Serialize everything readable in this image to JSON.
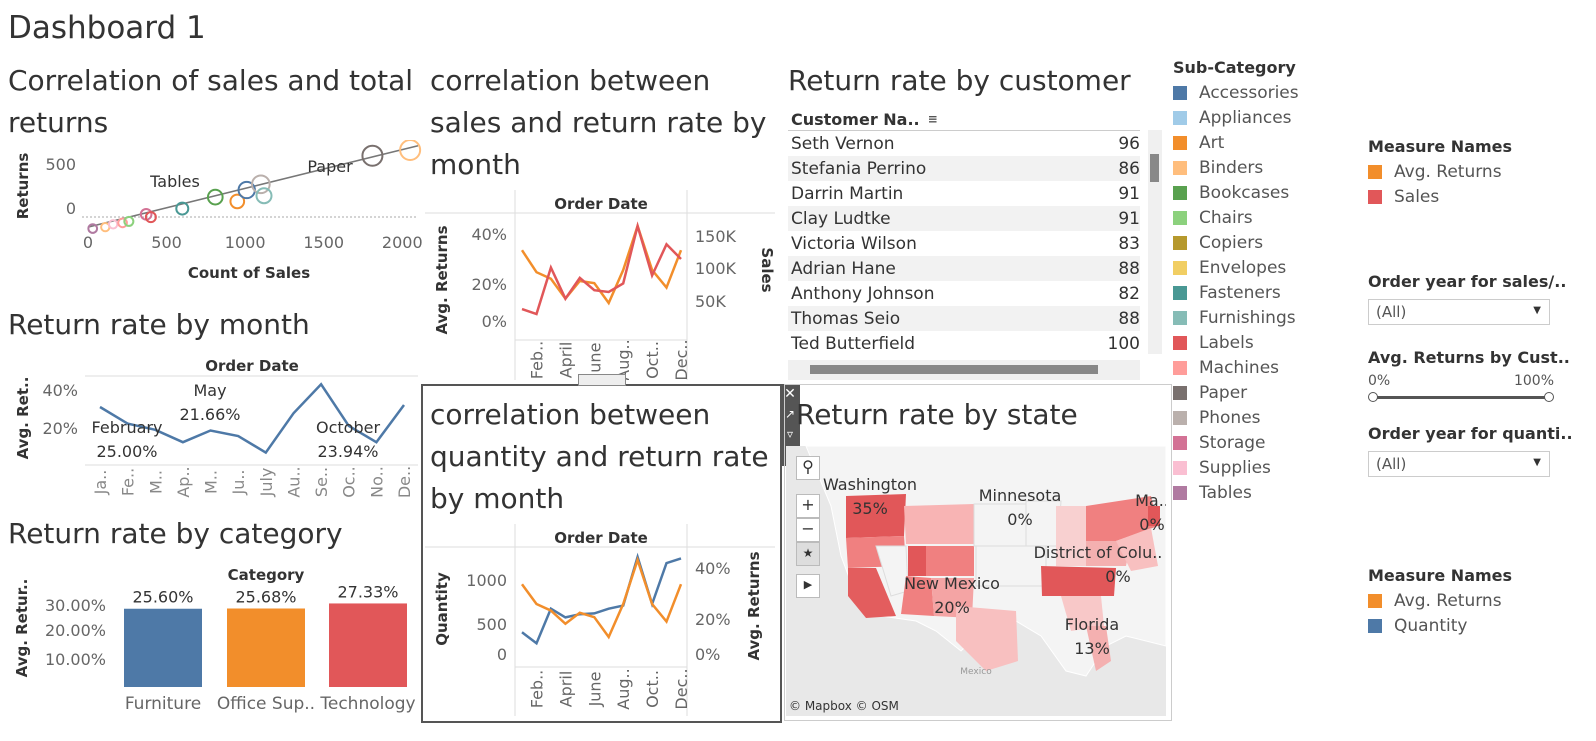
{
  "dashboard": {
    "title": "Dashboard 1"
  },
  "scatter": {
    "title": "Correlation of sales and total returns",
    "title_line1": "Correlation of sales and total",
    "title_line2": "returns",
    "ylabel": "Returns",
    "xlabel": "Count of Sales",
    "xticks": [
      "0",
      "500",
      "1000",
      "1500",
      "2000"
    ],
    "yticks": [
      "500",
      "0"
    ],
    "labels": [
      "Tables",
      "Paper"
    ]
  },
  "sales_month": {
    "title_lines": [
      "correlation between",
      "sales and return rate by",
      "month"
    ],
    "header": "Order Date",
    "ylabel_left": "Avg. Returns",
    "ylabel_right": "Sales",
    "yticks_left": [
      "40%",
      "20%",
      "0%"
    ],
    "yticks_right": [
      "150K",
      "100K",
      "50K"
    ],
    "xticks": [
      "Feb..",
      "April",
      "June",
      "Aug..",
      "Oct..",
      "Dec.."
    ]
  },
  "customer": {
    "title": "Return rate by customer",
    "header": "Customer Na..",
    "rows": [
      {
        "name": "Seth Vernon",
        "value": "96"
      },
      {
        "name": "Stefania Perrino",
        "value": "86"
      },
      {
        "name": "Darrin Martin",
        "value": "91"
      },
      {
        "name": "Clay Ludtke",
        "value": "91"
      },
      {
        "name": "Victoria Wilson",
        "value": "83"
      },
      {
        "name": "Adrian Hane",
        "value": "88"
      },
      {
        "name": "Anthony Johnson",
        "value": "82"
      },
      {
        "name": "Thomas Seio",
        "value": "88"
      },
      {
        "name": "Ted Butterfield",
        "value": "100"
      }
    ]
  },
  "subcategory_legend": {
    "title": "Sub-Category",
    "items": [
      {
        "label": "Accessories",
        "color": "#4e79a7"
      },
      {
        "label": "Appliances",
        "color": "#a0cbe8"
      },
      {
        "label": "Art",
        "color": "#f28e2b"
      },
      {
        "label": "Binders",
        "color": "#ffbe7d"
      },
      {
        "label": "Bookcases",
        "color": "#59a14f"
      },
      {
        "label": "Chairs",
        "color": "#8cd17d"
      },
      {
        "label": "Copiers",
        "color": "#b6992d"
      },
      {
        "label": "Envelopes",
        "color": "#f1ce63"
      },
      {
        "label": "Fasteners",
        "color": "#499894"
      },
      {
        "label": "Furnishings",
        "color": "#86bcb6"
      },
      {
        "label": "Labels",
        "color": "#e15759"
      },
      {
        "label": "Machines",
        "color": "#ff9d9a"
      },
      {
        "label": "Paper",
        "color": "#79706e"
      },
      {
        "label": "Phones",
        "color": "#bab0ac"
      },
      {
        "label": "Storage",
        "color": "#d37295"
      },
      {
        "label": "Supplies",
        "color": "#fabfd2"
      },
      {
        "label": "Tables",
        "color": "#b07aa1"
      }
    ]
  },
  "measure_legend_1": {
    "title": "Measure Names",
    "items": [
      {
        "label": "Avg. Returns",
        "color": "#f28e2b"
      },
      {
        "label": "Sales",
        "color": "#e15759"
      }
    ]
  },
  "measure_legend_2": {
    "title": "Measure Names",
    "items": [
      {
        "label": "Avg. Returns",
        "color": "#f28e2b"
      },
      {
        "label": "Quantity",
        "color": "#4e79a7"
      }
    ]
  },
  "filters": {
    "order_year_sales": {
      "title": "Order year for sales/..",
      "value": "(All)"
    },
    "avg_returns_customer": {
      "title": "Avg. Returns by Cust..",
      "min": "0%",
      "max": "100%"
    },
    "order_year_quantity": {
      "title": "Order year for quanti..",
      "value": "(All)"
    }
  },
  "return_month": {
    "title": "Return rate by month",
    "header": "Order Date",
    "ylabel": "Avg. Ret..",
    "yticks": [
      "40%",
      "20%"
    ],
    "xticks": [
      "Ja..",
      "Fe..",
      "M..",
      "Ap..",
      "M..",
      "Ju..",
      "July",
      "Au..",
      "Se..",
      "Oc..",
      "No..",
      "De.."
    ],
    "annotations": [
      {
        "label": "February",
        "value": "25.00%"
      },
      {
        "label": "May",
        "value": "21.66%"
      },
      {
        "label": "October",
        "value": "23.94%"
      }
    ]
  },
  "quantity_month": {
    "title_lines": [
      "correlation between",
      "quantity and return rate",
      "by month"
    ],
    "header": "Order Date",
    "ylabel_left": "Quantity",
    "ylabel_right": "Avg. Returns",
    "yticks_left": [
      "1000",
      "500",
      "0"
    ],
    "yticks_right": [
      "40%",
      "20%",
      "0%"
    ],
    "xticks": [
      "Feb..",
      "April",
      "June",
      "Aug..",
      "Oct..",
      "Dec.."
    ]
  },
  "state_map": {
    "title": "Return rate by state",
    "attribution": "© Mapbox © OSM",
    "country_label": "Mexico",
    "labels": [
      {
        "state": "Washington",
        "value": "35%"
      },
      {
        "state": "Minnesota",
        "value": "0%"
      },
      {
        "state": "District of Colu..",
        "value": "0%"
      },
      {
        "state": "New Mexico",
        "value": "20%"
      },
      {
        "state": "Florida",
        "value": "13%"
      },
      {
        "state": "Ma..",
        "value": "0%"
      }
    ]
  },
  "category": {
    "title": "Return rate by category",
    "header": "Category",
    "ylabel": "Avg. Retur..",
    "yticks": [
      "30.00%",
      "20.00%",
      "10.00%"
    ]
  },
  "chart_data": [
    {
      "type": "scatter",
      "title": "Correlation of sales and total returns",
      "xlabel": "Count of Sales",
      "ylabel": "Returns",
      "xlim": [
        0,
        2100
      ],
      "ylim": [
        -100,
        600
      ],
      "points": [
        {
          "x": 30,
          "y": -20,
          "sub": "Tables"
        },
        {
          "x": 110,
          "y": -10,
          "sub": "Binders"
        },
        {
          "x": 160,
          "y": 10,
          "sub": "Supplies"
        },
        {
          "x": 220,
          "y": 20,
          "sub": "Machines"
        },
        {
          "x": 260,
          "y": 30,
          "sub": "Chairs"
        },
        {
          "x": 370,
          "y": 80,
          "sub": "Storage"
        },
        {
          "x": 400,
          "y": 60,
          "sub": "Labels"
        },
        {
          "x": 600,
          "y": 120,
          "sub": "Fasteners"
        },
        {
          "x": 810,
          "y": 200,
          "sub": "Bookcases"
        },
        {
          "x": 950,
          "y": 170,
          "sub": "Art"
        },
        {
          "x": 1010,
          "y": 250,
          "sub": "Accessories"
        },
        {
          "x": 1100,
          "y": 290,
          "sub": "Phones"
        },
        {
          "x": 1120,
          "y": 210,
          "sub": "Furnishings"
        },
        {
          "x": 1810,
          "y": 490,
          "sub": "Paper"
        },
        {
          "x": 2050,
          "y": 530,
          "sub": "Binders"
        }
      ],
      "trend": [
        {
          "x": 0,
          "y": -10
        },
        {
          "x": 2100,
          "y": 560
        }
      ]
    },
    {
      "type": "line",
      "title": "correlation between sales and return rate by month",
      "x": [
        "Jan",
        "Feb",
        "Mar",
        "April",
        "May",
        "June",
        "Jul",
        "Aug",
        "Sep",
        "Oct",
        "Nov",
        "Dec"
      ],
      "series": [
        {
          "name": "Avg. Returns",
          "axis": "left",
          "values": [
            34,
            24,
            21,
            12,
            20,
            19,
            10,
            25,
            45,
            25,
            17,
            34
          ]
        },
        {
          "name": "Sales",
          "axis": "right",
          "values": [
            26000,
            18000,
            94000,
            43000,
            77000,
            57000,
            54000,
            68000,
            162000,
            81000,
            132000,
            108000
          ]
        }
      ],
      "ylim_left": [
        0,
        50
      ],
      "ylim_right": [
        0,
        180000
      ]
    },
    {
      "type": "line",
      "title": "Return rate by month",
      "ylabel": "Avg. Ret..",
      "x": [
        "Ja..",
        "Fe..",
        "M..",
        "Ap..",
        "M..",
        "Ju..",
        "July",
        "Au..",
        "Se..",
        "Oc..",
        "No..",
        "De.."
      ],
      "series": [
        {
          "name": "Avg. Returns",
          "values": [
            33,
            25,
            22,
            16,
            21.66,
            19,
            11,
            30,
            44,
            23.94,
            16,
            34
          ]
        }
      ],
      "ylim": [
        5,
        48
      ]
    },
    {
      "type": "line",
      "title": "correlation between quantity and return rate by month",
      "x": [
        "Jan",
        "Feb",
        "Mar",
        "April",
        "May",
        "June",
        "Jul",
        "Aug",
        "Sep",
        "Oct",
        "Nov",
        "Dec"
      ],
      "series": [
        {
          "name": "Avg. Returns",
          "axis": "right",
          "values": [
            34,
            25,
            22,
            16,
            21,
            19,
            10,
            25,
            45,
            25,
            17,
            34
          ]
        },
        {
          "name": "Quantity",
          "axis": "left",
          "values": [
            340,
            200,
            640,
            530,
            570,
            580,
            640,
            680,
            1300,
            700,
            1220,
            1280
          ]
        }
      ],
      "ylim_left": [
        0,
        1400
      ],
      "ylim_right": [
        0,
        50
      ]
    },
    {
      "type": "bar",
      "title": "Return rate by category",
      "categories": [
        "Furniture",
        "Office Sup..",
        "Technology"
      ],
      "values": [
        25.6,
        25.68,
        27.33
      ],
      "labels": [
        "25.60%",
        "25.68%",
        "27.33%"
      ],
      "colors": [
        "#4e79a7",
        "#f28e2b",
        "#e15759"
      ],
      "ylabel": "Avg. Retur..",
      "ylim": [
        0,
        35
      ]
    }
  ]
}
